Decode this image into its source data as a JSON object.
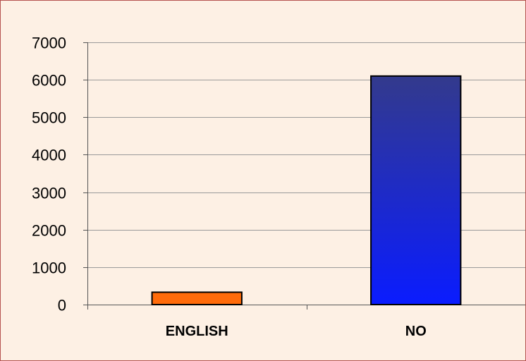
{
  "chart_data": {
    "type": "bar",
    "categories": [
      "ENGLISH",
      "NO"
    ],
    "values": [
      330,
      6100
    ],
    "ylim": [
      0,
      7000
    ],
    "yticks": [
      0,
      1000,
      2000,
      3000,
      4000,
      5000,
      6000,
      7000
    ],
    "ytick_labels": [
      "0",
      "1000",
      "2000",
      "3000",
      "4000",
      "5000",
      "6000",
      "7000"
    ],
    "grid": true,
    "legend": "none"
  },
  "colors": {
    "background": "#fdf0e4",
    "frame_border": "#b5524f",
    "grid": "#9a9a9a",
    "axis": "#555555",
    "bars": [
      {
        "type": "solid",
        "fill": "#ff6b0a"
      },
      {
        "type": "gradient",
        "top": "#333a8c",
        "bottom": "#0a1cff"
      }
    ],
    "bar_outline": "#000000"
  }
}
